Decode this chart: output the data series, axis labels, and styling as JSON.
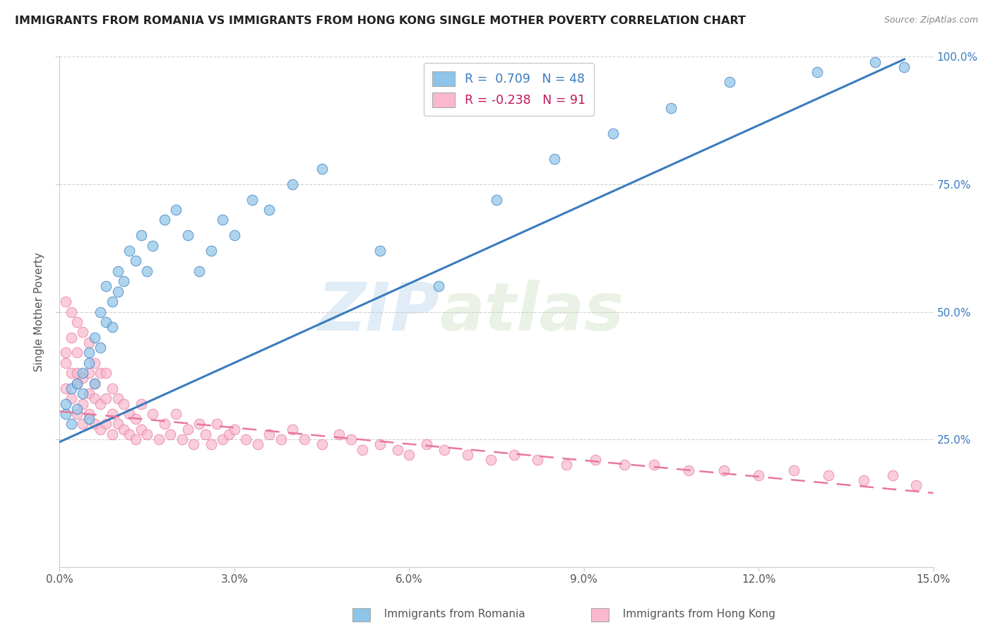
{
  "title": "IMMIGRANTS FROM ROMANIA VS IMMIGRANTS FROM HONG KONG SINGLE MOTHER POVERTY CORRELATION CHART",
  "source": "Source: ZipAtlas.com",
  "ylabel_left": "Single Mother Poverty",
  "legend_label1": "Immigrants from Romania",
  "legend_label2": "Immigrants from Hong Kong",
  "R1": 0.709,
  "N1": 48,
  "R2": -0.238,
  "N2": 91,
  "xlim": [
    0.0,
    0.15
  ],
  "ylim": [
    0.0,
    1.0
  ],
  "xticks": [
    0.0,
    0.03,
    0.06,
    0.09,
    0.12,
    0.15
  ],
  "xtick_labels": [
    "0.0%",
    "3.0%",
    "6.0%",
    "9.0%",
    "12.0%",
    "15.0%"
  ],
  "yticks_right": [
    0.25,
    0.5,
    0.75,
    1.0
  ],
  "ytick_labels_right": [
    "25.0%",
    "50.0%",
    "75.0%",
    "100.0%"
  ],
  "color_romania": "#8ec4e8",
  "color_hk": "#f9b8cc",
  "color_line_romania": "#3a7bbf",
  "color_line_hk": "#e8789a",
  "watermark_zip": "ZIP",
  "watermark_atlas": "atlas",
  "bg_color": "#ffffff",
  "grid_color": "#d0d0d0",
  "romania_x": [
    0.001,
    0.001,
    0.002,
    0.002,
    0.003,
    0.003,
    0.004,
    0.004,
    0.005,
    0.005,
    0.005,
    0.006,
    0.006,
    0.007,
    0.007,
    0.008,
    0.008,
    0.009,
    0.009,
    0.01,
    0.01,
    0.011,
    0.012,
    0.013,
    0.014,
    0.015,
    0.016,
    0.018,
    0.02,
    0.022,
    0.024,
    0.026,
    0.028,
    0.03,
    0.033,
    0.036,
    0.04,
    0.045,
    0.055,
    0.065,
    0.075,
    0.085,
    0.095,
    0.105,
    0.115,
    0.13,
    0.14,
    0.145
  ],
  "romania_y": [
    0.3,
    0.32,
    0.28,
    0.35,
    0.31,
    0.36,
    0.34,
    0.38,
    0.29,
    0.4,
    0.42,
    0.36,
    0.45,
    0.43,
    0.5,
    0.48,
    0.55,
    0.52,
    0.47,
    0.54,
    0.58,
    0.56,
    0.62,
    0.6,
    0.65,
    0.58,
    0.63,
    0.68,
    0.7,
    0.65,
    0.58,
    0.62,
    0.68,
    0.65,
    0.72,
    0.7,
    0.75,
    0.78,
    0.62,
    0.55,
    0.72,
    0.8,
    0.85,
    0.9,
    0.95,
    0.97,
    0.99,
    0.98
  ],
  "hk_x": [
    0.001,
    0.001,
    0.001,
    0.002,
    0.002,
    0.002,
    0.003,
    0.003,
    0.003,
    0.003,
    0.004,
    0.004,
    0.004,
    0.005,
    0.005,
    0.005,
    0.005,
    0.006,
    0.006,
    0.006,
    0.006,
    0.007,
    0.007,
    0.007,
    0.008,
    0.008,
    0.008,
    0.009,
    0.009,
    0.009,
    0.01,
    0.01,
    0.011,
    0.011,
    0.012,
    0.012,
    0.013,
    0.013,
    0.014,
    0.014,
    0.015,
    0.016,
    0.017,
    0.018,
    0.019,
    0.02,
    0.021,
    0.022,
    0.023,
    0.024,
    0.025,
    0.026,
    0.027,
    0.028,
    0.029,
    0.03,
    0.032,
    0.034,
    0.036,
    0.038,
    0.04,
    0.042,
    0.045,
    0.048,
    0.05,
    0.052,
    0.055,
    0.058,
    0.06,
    0.063,
    0.066,
    0.07,
    0.074,
    0.078,
    0.082,
    0.087,
    0.092,
    0.097,
    0.102,
    0.108,
    0.114,
    0.12,
    0.126,
    0.132,
    0.138,
    0.143,
    0.147,
    0.001,
    0.002,
    0.003,
    0.004
  ],
  "hk_y": [
    0.4,
    0.35,
    0.42,
    0.38,
    0.33,
    0.45,
    0.36,
    0.3,
    0.42,
    0.38,
    0.32,
    0.37,
    0.28,
    0.34,
    0.38,
    0.3,
    0.44,
    0.28,
    0.33,
    0.36,
    0.4,
    0.27,
    0.32,
    0.38,
    0.28,
    0.33,
    0.38,
    0.26,
    0.3,
    0.35,
    0.28,
    0.33,
    0.27,
    0.32,
    0.26,
    0.3,
    0.25,
    0.29,
    0.27,
    0.32,
    0.26,
    0.3,
    0.25,
    0.28,
    0.26,
    0.3,
    0.25,
    0.27,
    0.24,
    0.28,
    0.26,
    0.24,
    0.28,
    0.25,
    0.26,
    0.27,
    0.25,
    0.24,
    0.26,
    0.25,
    0.27,
    0.25,
    0.24,
    0.26,
    0.25,
    0.23,
    0.24,
    0.23,
    0.22,
    0.24,
    0.23,
    0.22,
    0.21,
    0.22,
    0.21,
    0.2,
    0.21,
    0.2,
    0.2,
    0.19,
    0.19,
    0.18,
    0.19,
    0.18,
    0.17,
    0.18,
    0.16,
    0.52,
    0.5,
    0.48,
    0.46
  ],
  "romania_line_x": [
    0.0,
    0.145
  ],
  "romania_line_y": [
    0.245,
    0.995
  ],
  "hk_line_x": [
    0.0,
    0.15
  ],
  "hk_line_y": [
    0.305,
    0.145
  ]
}
